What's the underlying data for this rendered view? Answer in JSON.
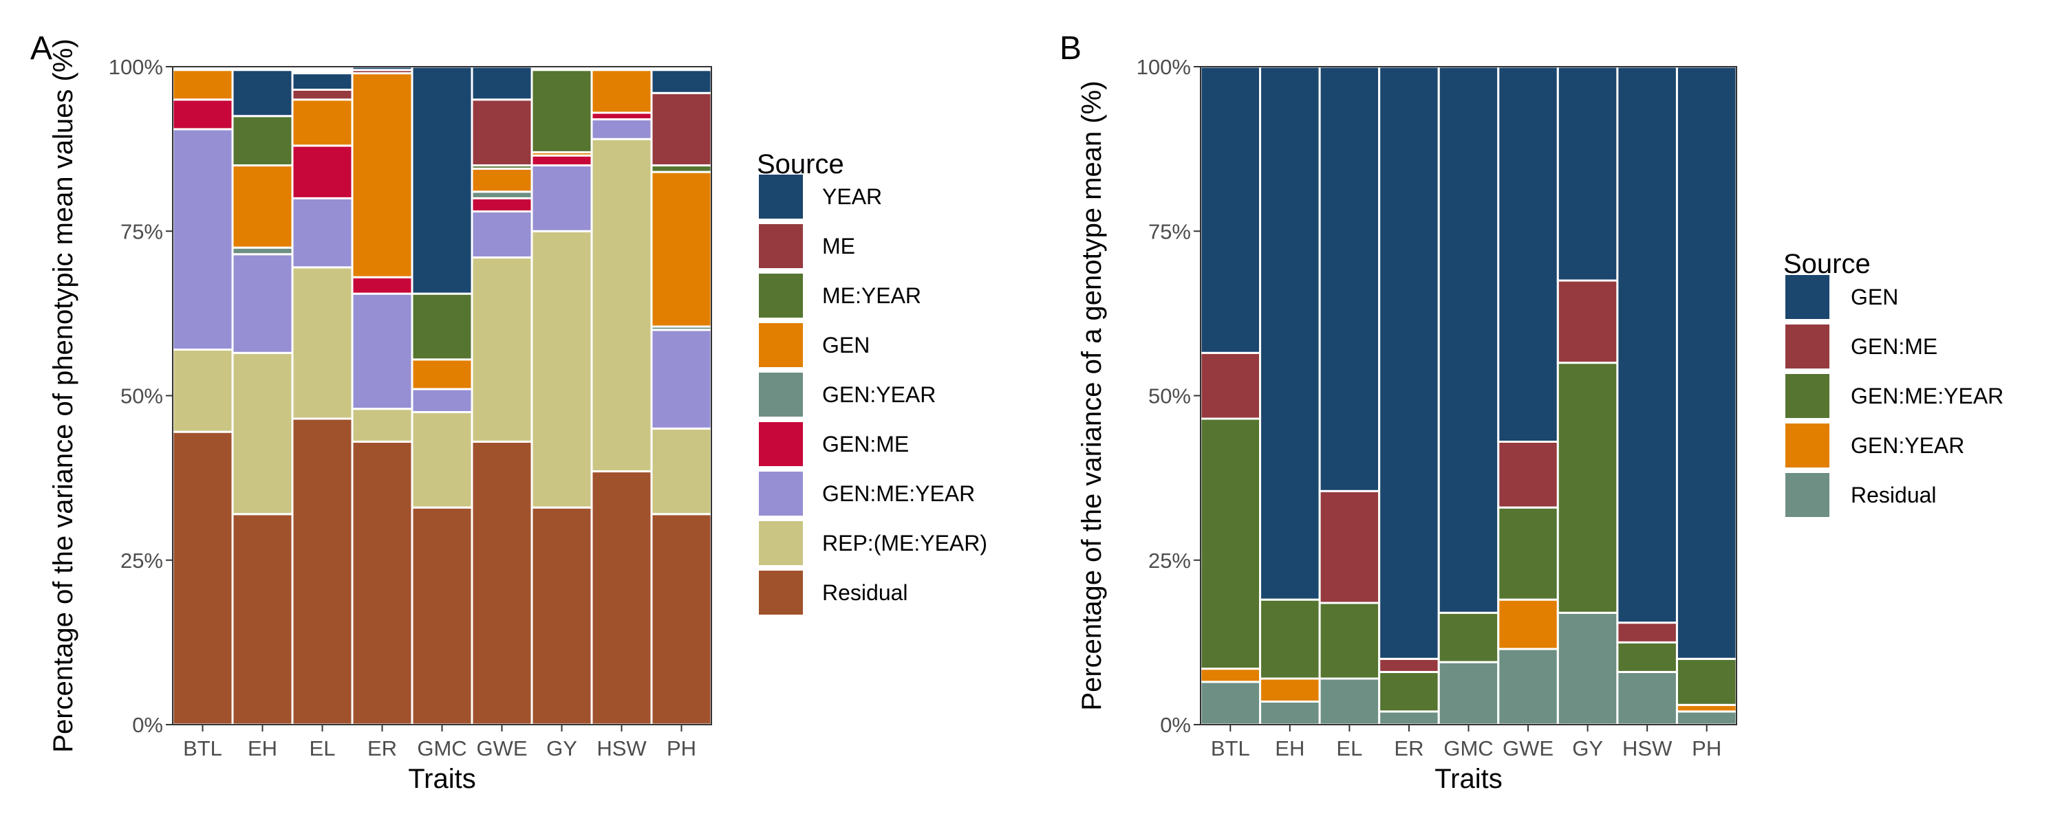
{
  "chart_data": [
    {
      "type": "bar",
      "panel_label": "A",
      "title": "",
      "xlabel": "Traits",
      "ylabel": "Percentage of the variance of phenotypic mean values (%)",
      "ylim": [
        0,
        100
      ],
      "yticks": [
        "0%",
        "25%",
        "50%",
        "75%",
        "100%"
      ],
      "stacked": true,
      "categories": [
        "BTL",
        "EH",
        "EL",
        "ER",
        "GMC",
        "GWE",
        "GY",
        "HSW",
        "PH"
      ],
      "legend_title": "Source",
      "legend_position": "right",
      "series": [
        {
          "name": "Residual",
          "color": "#A0522D",
          "values": [
            44.5,
            32.0,
            46.5,
            43.0,
            33.0,
            43.0,
            33.0,
            38.5,
            32.0
          ]
        },
        {
          "name": "REP:(ME:YEAR)",
          "color": "#CBC584",
          "values": [
            12.5,
            24.5,
            23.0,
            5.0,
            14.5,
            28.0,
            42.0,
            50.5,
            13.0
          ]
        },
        {
          "name": "GEN:ME:YEAR",
          "color": "#968FD3",
          "values": [
            33.5,
            15.0,
            10.5,
            17.5,
            3.5,
            7.0,
            10.0,
            3.0,
            15.0
          ]
        },
        {
          "name": "GEN:ME",
          "color": "#C7063A",
          "values": [
            4.5,
            0.0,
            8.0,
            2.5,
            0.0,
            2.0,
            1.5,
            1.0,
            0.0
          ]
        },
        {
          "name": "GEN:YEAR",
          "color": "#6E8F83",
          "values": [
            0.0,
            1.0,
            0.0,
            0.0,
            0.0,
            1.0,
            0.0,
            0.0,
            0.5
          ]
        },
        {
          "name": "GEN",
          "color": "#E27F00",
          "values": [
            4.5,
            12.5,
            7.0,
            31.0,
            4.5,
            3.5,
            0.5,
            6.5,
            23.5
          ]
        },
        {
          "name": "ME:YEAR",
          "color": "#557530",
          "values": [
            0.0,
            7.5,
            0.0,
            0.0,
            10.0,
            0.5,
            12.5,
            0.0,
            1.0
          ]
        },
        {
          "name": "ME",
          "color": "#963A40",
          "values": [
            0.0,
            0.0,
            1.5,
            0.5,
            0.0,
            10.0,
            0.0,
            0.0,
            11.0
          ]
        },
        {
          "name": "YEAR",
          "color": "#1B466E",
          "values": [
            0.0,
            7.0,
            2.5,
            0.5,
            34.5,
            5.0,
            0.0,
            0.0,
            3.5
          ]
        }
      ],
      "legend_order": [
        "YEAR",
        "ME",
        "ME:YEAR",
        "GEN",
        "GEN:YEAR",
        "GEN:ME",
        "GEN:ME:YEAR",
        "REP:(ME:YEAR)",
        "Residual"
      ]
    },
    {
      "type": "bar",
      "panel_label": "B",
      "title": "",
      "xlabel": "Traits",
      "ylabel": "Percentage of the variance of a genotype mean (%)",
      "ylim": [
        0,
        100
      ],
      "yticks": [
        "0%",
        "25%",
        "50%",
        "75%",
        "100%"
      ],
      "stacked": true,
      "categories": [
        "BTL",
        "EH",
        "EL",
        "ER",
        "GMC",
        "GWE",
        "GY",
        "HSW",
        "PH"
      ],
      "legend_title": "Source",
      "legend_position": "right",
      "series": [
        {
          "name": "Residual",
          "color": "#6E8F83",
          "values": [
            6.5,
            3.5,
            7.0,
            2.0,
            9.5,
            11.5,
            17.0,
            8.0,
            2.0
          ]
        },
        {
          "name": "GEN:YEAR",
          "color": "#E27F00",
          "values": [
            2.0,
            3.5,
            0.0,
            0.0,
            0.0,
            7.5,
            0.0,
            0.0,
            1.0
          ]
        },
        {
          "name": "GEN:ME:YEAR",
          "color": "#557530",
          "values": [
            38.0,
            12.0,
            11.5,
            6.0,
            7.5,
            14.0,
            38.0,
            4.5,
            7.0
          ]
        },
        {
          "name": "GEN:ME",
          "color": "#963A40",
          "values": [
            10.0,
            0.0,
            17.0,
            2.0,
            0.0,
            10.0,
            12.5,
            3.0,
            0.0
          ]
        },
        {
          "name": "GEN",
          "color": "#1B466E",
          "values": [
            43.5,
            81.0,
            64.5,
            90.0,
            83.0,
            57.0,
            32.5,
            84.5,
            90.0
          ]
        }
      ],
      "legend_order": [
        "GEN",
        "GEN:ME",
        "GEN:ME:YEAR",
        "GEN:YEAR",
        "Residual"
      ]
    }
  ]
}
